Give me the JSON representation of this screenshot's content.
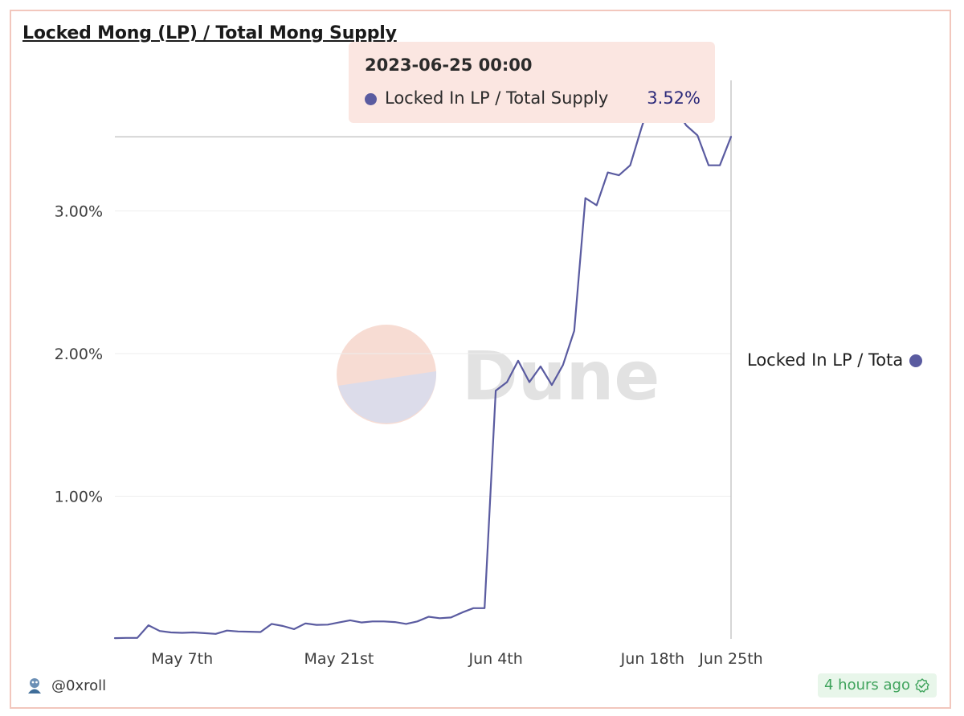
{
  "title": "Locked Mong (LP) / Total Mong Supply",
  "watermark": "Dune",
  "tooltip": {
    "date": "2023-06-25 00:00",
    "series": "Locked In LP / Total Supply",
    "value": "3.52%"
  },
  "legend": {
    "label": "Locked In LP / Total Supply"
  },
  "footer": {
    "author": "@0xroll",
    "updated": "4 hours ago"
  },
  "colors": {
    "line": "#5a5ba0",
    "tooltip_bg": "#fbe6e1",
    "frame": "#f2c7bd",
    "badge_text": "#3fa35c"
  },
  "icons": {
    "author_avatar": "avatar-icon",
    "verified": "check-badge-icon"
  },
  "chart_data": {
    "type": "line",
    "title": "Locked Mong (LP) / Total Mong Supply",
    "xlabel": "",
    "ylabel": "",
    "y_unit": "%",
    "ylim": [
      0,
      3.6
    ],
    "y_ticks": [
      1.0,
      2.0,
      3.0
    ],
    "y_tick_labels": [
      "1.00%",
      "2.00%",
      "3.00%"
    ],
    "x_ticks": [
      "2023-05-07",
      "2023-05-21",
      "2023-06-04",
      "2023-06-18",
      "2023-06-25"
    ],
    "x_tick_labels": [
      "May 7th",
      "May 21st",
      "Jun 4th",
      "Jun 18th",
      "Jun 25th"
    ],
    "grid": true,
    "legend_position": "right",
    "highlight": {
      "x": "2023-06-25",
      "y": 3.52
    },
    "series": [
      {
        "name": "Locked In LP / Total Supply",
        "x": [
          "2023-05-01",
          "2023-05-02",
          "2023-05-03",
          "2023-05-04",
          "2023-05-05",
          "2023-05-06",
          "2023-05-07",
          "2023-05-08",
          "2023-05-09",
          "2023-05-10",
          "2023-05-11",
          "2023-05-12",
          "2023-05-13",
          "2023-05-14",
          "2023-05-15",
          "2023-05-16",
          "2023-05-17",
          "2023-05-18",
          "2023-05-19",
          "2023-05-20",
          "2023-05-21",
          "2023-05-22",
          "2023-05-23",
          "2023-05-24",
          "2023-05-25",
          "2023-05-26",
          "2023-05-27",
          "2023-05-28",
          "2023-05-29",
          "2023-05-30",
          "2023-05-31",
          "2023-06-01",
          "2023-06-02",
          "2023-06-03",
          "2023-06-04",
          "2023-06-05",
          "2023-06-06",
          "2023-06-07",
          "2023-06-08",
          "2023-06-09",
          "2023-06-10",
          "2023-06-11",
          "2023-06-12",
          "2023-06-13",
          "2023-06-14",
          "2023-06-15",
          "2023-06-16",
          "2023-06-17",
          "2023-06-18",
          "2023-06-19",
          "2023-06-20",
          "2023-06-21",
          "2023-06-22",
          "2023-06-23",
          "2023-06-24",
          "2023-06-25"
        ],
        "values": [
          0.005,
          0.007,
          0.007,
          0.095,
          0.055,
          0.045,
          0.042,
          0.045,
          0.04,
          0.035,
          0.058,
          0.052,
          0.05,
          0.048,
          0.105,
          0.09,
          0.068,
          0.108,
          0.098,
          0.1,
          0.115,
          0.13,
          0.115,
          0.122,
          0.122,
          0.118,
          0.105,
          0.122,
          0.155,
          0.145,
          0.15,
          0.185,
          0.215,
          0.215,
          1.74,
          1.8,
          1.95,
          1.8,
          1.91,
          1.78,
          1.92,
          2.16,
          3.09,
          3.04,
          3.27,
          3.25,
          3.32,
          3.58,
          3.82,
          3.88,
          3.72,
          3.6,
          3.53,
          3.32,
          3.32,
          3.52
        ]
      }
    ]
  }
}
